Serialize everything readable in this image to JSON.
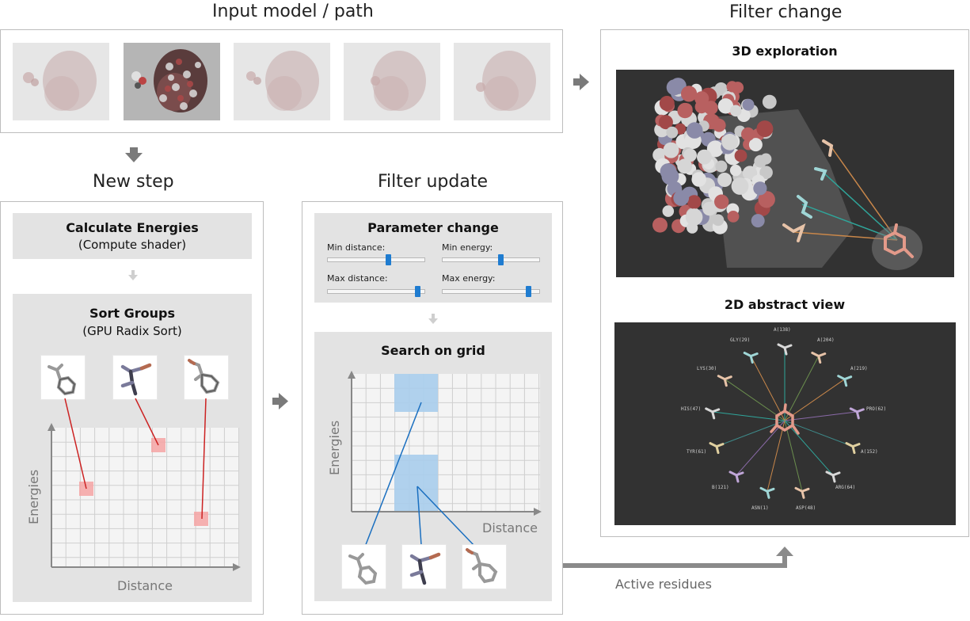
{
  "sections": {
    "input_model": "Input model / path",
    "new_step": "New step",
    "filter_update": "Filter update",
    "filter_change": "Filter change"
  },
  "new_step": {
    "calc_title": "Calculate Energies",
    "calc_sub": "(Compute shader)",
    "sort_title": "Sort Groups",
    "sort_sub": "(GPU Radix Sort)",
    "xlabel": "Distance",
    "ylabel": "Energies"
  },
  "filter_update": {
    "param_title": "Parameter change",
    "sliders": [
      {
        "label": "Min distance:",
        "value": 0.62
      },
      {
        "label": "Min energy:",
        "value": 0.6
      },
      {
        "label": "Max distance:",
        "value": 0.92
      },
      {
        "label": "Max energy:",
        "value": 0.88
      }
    ],
    "search_title": "Search on grid",
    "xlabel": "Distance",
    "ylabel": "Energies"
  },
  "filter_change": {
    "exploration_title": "3D exploration",
    "abstract_title": "2D abstract view",
    "residue_labels": [
      "A(138)",
      "A(204)",
      "A(219)",
      "PRO(62)",
      "A(152)",
      "ARG(64)",
      "ASP(48)",
      "ASN(1)",
      "B(121)",
      "TYR(61)",
      "HIS(47)",
      "LYS(30)",
      "GLY(29)"
    ]
  },
  "flow": {
    "active_residues": "Active residues"
  },
  "colors": {
    "frame_border": "#bdbdbd",
    "box_fill": "#e3e3e3",
    "highlight_red": "#f4a3a3",
    "connector_red": "#cc2222",
    "highlight_blue": "#a9cdec",
    "connector_blue": "#1a6fc0",
    "slider_handle": "#1f7cd0",
    "dark_panel": "#323232"
  }
}
